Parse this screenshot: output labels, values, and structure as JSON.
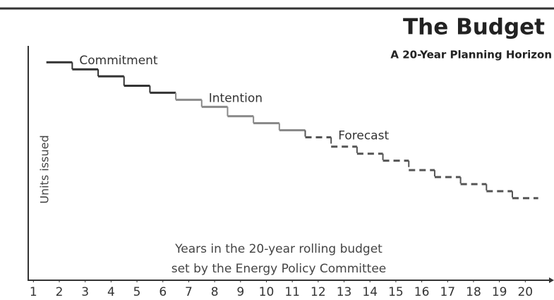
{
  "chart_data": {
    "type": "step",
    "title": "The Budget",
    "subtitle": "A 20-Year Planning Horizon",
    "y_label": "Units issued",
    "note": [
      "Years in the 20-year rolling budget",
      "set by the Energy Policy Committee"
    ],
    "x": [
      2,
      3,
      4,
      5,
      6,
      7,
      8,
      9,
      10,
      11,
      12,
      13,
      14,
      15,
      16,
      17,
      18,
      19,
      20
    ],
    "series": [
      {
        "name": "Commitment",
        "color": "#333333",
        "dashed": false,
        "values": [
          93,
          90,
          87,
          83,
          80,
          null,
          null,
          null,
          null,
          null,
          null,
          null,
          null,
          null,
          null,
          null,
          null,
          null,
          null
        ]
      },
      {
        "name": "Intention",
        "color": "#8a8a8a",
        "dashed": false,
        "values": [
          null,
          null,
          null,
          null,
          null,
          77,
          74,
          70,
          67,
          64,
          null,
          null,
          null,
          null,
          null,
          null,
          null,
          null,
          null
        ]
      },
      {
        "name": "Forecast",
        "color": "#555555",
        "dashed": true,
        "values": [
          null,
          null,
          null,
          null,
          null,
          null,
          null,
          null,
          null,
          null,
          61,
          57,
          54,
          51,
          47,
          44,
          41,
          38,
          35
        ]
      }
    ],
    "xlim": [
      0.8,
      21
    ],
    "xticks": [
      1,
      2,
      3,
      4,
      5,
      6,
      7,
      8,
      9,
      10,
      11,
      12,
      13,
      14,
      15,
      16,
      17,
      18,
      19,
      20
    ],
    "ylim": [
      0,
      100
    ]
  }
}
